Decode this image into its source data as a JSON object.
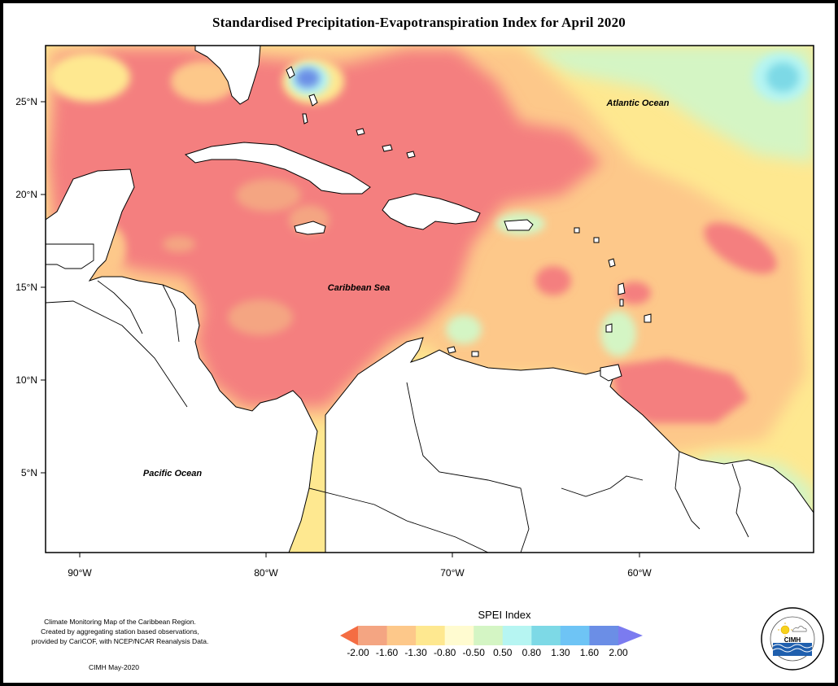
{
  "title": "Standardised Precipitation-Evapotranspiration Index for April 2020",
  "labels": {
    "atlantic": "Atlantic Ocean",
    "caribbean": "Caribbean Sea",
    "pacific": "Pacific Ocean"
  },
  "y_ticks": [
    "25°N",
    "20°N",
    "15°N",
    "10°N",
    "5°N"
  ],
  "x_ticks": [
    "90°W",
    "80°W",
    "70°W",
    "60°W"
  ],
  "legend": {
    "title": "SPEI Index",
    "ticks": [
      "-2.00",
      "-1.60",
      "-1.30",
      "-0.80",
      "-0.50",
      "0.50",
      "0.80",
      "1.30",
      "1.60",
      "2.00"
    ],
    "colors": [
      "#f46d43",
      "#f4a582",
      "#fdc88a",
      "#fee890",
      "#fffbd0",
      "#d4f5c4",
      "#b6f5f2",
      "#7dd9e6",
      "#6ec4f5",
      "#6b8ee6",
      "#7b7bf0"
    ]
  },
  "credits": {
    "line1": "Climate Monitoring Map of the Caribbean Region.",
    "line2": "Created by aggregating station based observations,",
    "line3": "provided by CariCOF, with NCEP/NCAR Reanalysis Data.",
    "date": "CIMH May-2020"
  },
  "logo": {
    "text": "CIMH",
    "ring_text": "Caribbean Institute for Meteorology and Hydrology"
  }
}
